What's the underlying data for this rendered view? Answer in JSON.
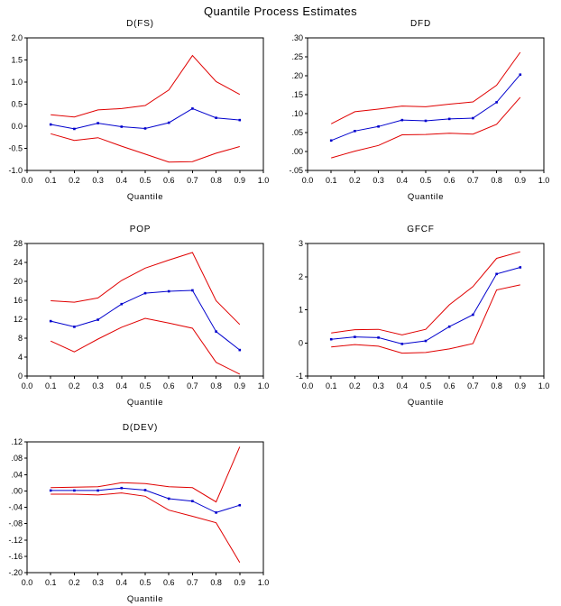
{
  "page_title": "Quantile Process Estimates",
  "colors": {
    "estimate": "#0000cd",
    "band": "#e00000",
    "axis": "#000000"
  },
  "chart_data": [
    {
      "type": "line",
      "title": "D(FS)",
      "xlabel": "Quantile",
      "xlim": [
        0.0,
        1.0
      ],
      "xticks": [
        "0.0",
        "0.1",
        "0.2",
        "0.3",
        "0.4",
        "0.5",
        "0.6",
        "0.7",
        "0.8",
        "0.9",
        "1.0"
      ],
      "ylim": [
        -1.0,
        2.0
      ],
      "yticks": [
        "2.0",
        "1.5",
        "1.0",
        "0.5",
        "0.0",
        "-0.5",
        "-1.0"
      ],
      "grid": false,
      "legend": "none",
      "x": [
        0.1,
        0.2,
        0.3,
        0.4,
        0.5,
        0.6,
        0.7,
        0.8,
        0.9
      ],
      "series": [
        {
          "name": "upper-confidence-band",
          "color": "band",
          "marker": false,
          "values": [
            0.26,
            0.21,
            0.37,
            0.4,
            0.47,
            0.82,
            1.6,
            1.01,
            0.72
          ]
        },
        {
          "name": "quantile-estimate",
          "color": "estimate",
          "marker": true,
          "values": [
            0.04,
            -0.06,
            0.07,
            -0.01,
            -0.05,
            0.08,
            0.4,
            0.19,
            0.14
          ]
        },
        {
          "name": "lower-confidence-band",
          "color": "band",
          "marker": false,
          "values": [
            -0.17,
            -0.32,
            -0.26,
            -0.45,
            -0.63,
            -0.81,
            -0.8,
            -0.61,
            -0.46
          ]
        }
      ]
    },
    {
      "type": "line",
      "title": "DFD",
      "xlabel": "Quantile",
      "xlim": [
        0.0,
        1.0
      ],
      "xticks": [
        "0.0",
        "0.1",
        "0.2",
        "0.3",
        "0.4",
        "0.5",
        "0.6",
        "0.7",
        "0.8",
        "0.9",
        "1.0"
      ],
      "ylim": [
        -0.05,
        0.3
      ],
      "yticks": [
        ".30",
        ".25",
        ".20",
        ".15",
        ".10",
        ".05",
        ".00",
        "-.05"
      ],
      "grid": false,
      "legend": "none",
      "x": [
        0.1,
        0.2,
        0.3,
        0.4,
        0.5,
        0.6,
        0.7,
        0.8,
        0.9
      ],
      "series": [
        {
          "name": "upper-confidence-band",
          "color": "band",
          "marker": false,
          "values": [
            0.073,
            0.105,
            0.112,
            0.12,
            0.118,
            0.125,
            0.131,
            0.175,
            0.262
          ]
        },
        {
          "name": "quantile-estimate",
          "color": "estimate",
          "marker": true,
          "values": [
            0.029,
            0.054,
            0.066,
            0.083,
            0.081,
            0.086,
            0.088,
            0.13,
            0.203
          ]
        },
        {
          "name": "lower-confidence-band",
          "color": "band",
          "marker": false,
          "values": [
            -0.017,
            0.001,
            0.016,
            0.044,
            0.045,
            0.048,
            0.046,
            0.072,
            0.143
          ]
        }
      ]
    },
    {
      "type": "line",
      "title": "POP",
      "xlabel": "Quantile",
      "xlim": [
        0.0,
        1.0
      ],
      "xticks": [
        "0.0",
        "0.1",
        "0.2",
        "0.3",
        "0.4",
        "0.5",
        "0.6",
        "0.7",
        "0.8",
        "0.9",
        "1.0"
      ],
      "ylim": [
        0,
        28
      ],
      "yticks": [
        "28",
        "24",
        "20",
        "16",
        "12",
        "8",
        "4",
        "0"
      ],
      "grid": false,
      "legend": "none",
      "x": [
        0.1,
        0.2,
        0.3,
        0.4,
        0.5,
        0.6,
        0.7,
        0.8,
        0.9
      ],
      "series": [
        {
          "name": "upper-confidence-band",
          "color": "band",
          "marker": false,
          "values": [
            15.9,
            15.6,
            16.5,
            20.2,
            22.8,
            24.5,
            26.1,
            15.9,
            10.9
          ]
        },
        {
          "name": "quantile-estimate",
          "color": "estimate",
          "marker": true,
          "values": [
            11.6,
            10.4,
            11.9,
            15.2,
            17.5,
            17.9,
            18.1,
            9.4,
            5.5
          ]
        },
        {
          "name": "lower-confidence-band",
          "color": "band",
          "marker": false,
          "values": [
            7.4,
            5.1,
            7.8,
            10.3,
            12.2,
            11.2,
            10.1,
            2.9,
            0.4
          ]
        }
      ]
    },
    {
      "type": "line",
      "title": "GFCF",
      "xlabel": "Quantile",
      "xlim": [
        0.0,
        1.0
      ],
      "xticks": [
        "0.0",
        "0.1",
        "0.2",
        "0.3",
        "0.4",
        "0.5",
        "0.6",
        "0.7",
        "0.8",
        "0.9",
        "1.0"
      ],
      "ylim": [
        -1,
        3
      ],
      "yticks": [
        "3",
        "2",
        "1",
        "0",
        "-1"
      ],
      "grid": false,
      "legend": "none",
      "x": [
        0.1,
        0.2,
        0.3,
        0.4,
        0.5,
        0.6,
        0.7,
        0.8,
        0.9
      ],
      "series": [
        {
          "name": "upper-confidence-band",
          "color": "band",
          "marker": false,
          "values": [
            0.3,
            0.4,
            0.41,
            0.24,
            0.41,
            1.15,
            1.7,
            2.55,
            2.75
          ]
        },
        {
          "name": "quantile-estimate",
          "color": "estimate",
          "marker": true,
          "values": [
            0.11,
            0.18,
            0.16,
            -0.03,
            0.06,
            0.49,
            0.85,
            2.08,
            2.28
          ]
        },
        {
          "name": "lower-confidence-band",
          "color": "band",
          "marker": false,
          "values": [
            -0.12,
            -0.05,
            -0.1,
            -0.31,
            -0.29,
            -0.18,
            -0.02,
            1.6,
            1.75
          ]
        }
      ]
    },
    {
      "type": "line",
      "title": "D(DEV)",
      "xlabel": "Quantile",
      "xlim": [
        0.0,
        1.0
      ],
      "xticks": [
        "0.0",
        "0.1",
        "0.2",
        "0.3",
        "0.4",
        "0.5",
        "0.6",
        "0.7",
        "0.8",
        "0.9",
        "1.0"
      ],
      "ylim": [
        -0.2,
        0.12
      ],
      "yticks": [
        ".12",
        ".08",
        ".04",
        ".00",
        "-.04",
        "-.08",
        "-.12",
        "-.16",
        "-.20"
      ],
      "grid": false,
      "legend": "none",
      "x": [
        0.1,
        0.2,
        0.3,
        0.4,
        0.5,
        0.6,
        0.7,
        0.8,
        0.9
      ],
      "series": [
        {
          "name": "upper-confidence-band",
          "color": "band",
          "marker": false,
          "values": [
            0.008,
            0.009,
            0.01,
            0.02,
            0.018,
            0.01,
            0.008,
            -0.027,
            0.108
          ]
        },
        {
          "name": "quantile-estimate",
          "color": "estimate",
          "marker": true,
          "values": [
            0.001,
            0.001,
            0.001,
            0.007,
            0.002,
            -0.019,
            -0.025,
            -0.053,
            -0.035
          ]
        },
        {
          "name": "lower-confidence-band",
          "color": "band",
          "marker": false,
          "values": [
            -0.008,
            -0.008,
            -0.01,
            -0.005,
            -0.013,
            -0.047,
            -0.062,
            -0.078,
            -0.175
          ]
        }
      ]
    }
  ]
}
